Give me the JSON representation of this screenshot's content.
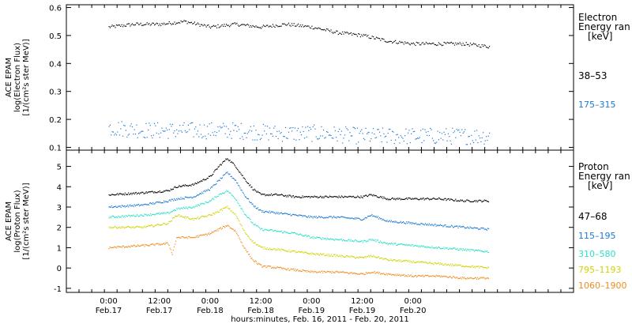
{
  "chart_data": [
    {
      "type": "scatter",
      "ylabel": [
        "ACE EPAM",
        "log(Electron Flux)",
        "[1/(cm²s ster MeV)]"
      ],
      "ylim": [
        0.09,
        0.61
      ],
      "yticks": [
        0.1,
        0.2,
        0.3,
        0.4,
        0.5,
        0.6
      ],
      "ytick_labels": [
        "0.1",
        "0.2",
        "0.3",
        "0.4",
        "0.5",
        "0.6"
      ],
      "legend_title": [
        "Electron",
        "Energy ran",
        "[keV]"
      ],
      "series": [
        {
          "name": "38–53",
          "color": "#000000",
          "x": [
            0,
            6,
            12,
            18,
            24,
            30,
            36,
            42,
            48,
            54,
            60,
            66,
            72,
            78,
            84,
            90
          ],
          "y": [
            0.53,
            0.54,
            0.54,
            0.55,
            0.53,
            0.54,
            0.53,
            0.54,
            0.53,
            0.51,
            0.5,
            0.48,
            0.47,
            0.47,
            0.47,
            0.46
          ]
        },
        {
          "name": "175–315",
          "color": "#1e78d2",
          "x": [
            0,
            10,
            20,
            30,
            40,
            50,
            60,
            70,
            80,
            90
          ],
          "y": [
            0.17,
            0.16,
            0.16,
            0.16,
            0.15,
            0.15,
            0.14,
            0.14,
            0.14,
            0.14
          ]
        }
      ]
    },
    {
      "type": "scatter",
      "ylabel": [
        "ACE EPAM",
        "log(Proton Flux)",
        "[1/(cm²s ster MeV)]"
      ],
      "ylim": [
        -1.2,
        5.8
      ],
      "yticks": [
        -1,
        0,
        1,
        2,
        3,
        4,
        5
      ],
      "ytick_labels": [
        "-1",
        "0",
        "1",
        "2",
        "3",
        "4",
        "5"
      ],
      "legend_title": [
        "Proton",
        "Energy ran",
        "[keV]"
      ],
      "series": [
        {
          "name": "47–68",
          "color": "#000000",
          "x": [
            0,
            8,
            14,
            16,
            20,
            24,
            26,
            28,
            30,
            32,
            34,
            36,
            40,
            44,
            48,
            54,
            60,
            62,
            66,
            72,
            78,
            84,
            90
          ],
          "y": [
            3.6,
            3.7,
            3.8,
            4.0,
            4.1,
            4.5,
            5.0,
            5.4,
            5.0,
            4.4,
            3.9,
            3.6,
            3.6,
            3.5,
            3.5,
            3.5,
            3.5,
            3.6,
            3.4,
            3.4,
            3.4,
            3.3,
            3.3
          ]
        },
        {
          "name": "115–195",
          "color": "#1e78d2",
          "x": [
            0,
            8,
            14,
            16,
            20,
            24,
            26,
            28,
            30,
            32,
            34,
            36,
            40,
            44,
            48,
            54,
            60,
            62,
            66,
            72,
            78,
            84,
            90
          ],
          "y": [
            3.0,
            3.1,
            3.3,
            3.4,
            3.5,
            3.9,
            4.3,
            4.7,
            4.3,
            3.6,
            3.1,
            2.8,
            2.7,
            2.6,
            2.5,
            2.5,
            2.4,
            2.6,
            2.3,
            2.2,
            2.1,
            2.0,
            1.9
          ]
        },
        {
          "name": "310–580",
          "color": "#28e0c8",
          "x": [
            0,
            8,
            14,
            16,
            20,
            24,
            26,
            28,
            30,
            32,
            34,
            36,
            40,
            44,
            48,
            54,
            60,
            62,
            66,
            72,
            78,
            84,
            90
          ],
          "y": [
            2.5,
            2.6,
            2.7,
            2.9,
            3.0,
            3.3,
            3.6,
            3.8,
            3.4,
            2.7,
            2.2,
            1.9,
            1.8,
            1.7,
            1.5,
            1.4,
            1.3,
            1.4,
            1.2,
            1.1,
            1.0,
            0.9,
            0.8
          ]
        },
        {
          "name": "795–1193",
          "color": "#d2d200",
          "x": [
            0,
            8,
            14,
            16,
            20,
            24,
            26,
            28,
            30,
            32,
            34,
            36,
            40,
            44,
            48,
            54,
            60,
            62,
            66,
            72,
            78,
            84,
            90
          ],
          "y": [
            2.0,
            2.0,
            2.2,
            2.6,
            2.4,
            2.6,
            2.8,
            3.0,
            2.6,
            1.8,
            1.3,
            1.0,
            0.9,
            0.8,
            0.7,
            0.6,
            0.5,
            0.6,
            0.4,
            0.3,
            0.2,
            0.1,
            0.0
          ]
        },
        {
          "name": "1060–1900",
          "color": "#f08c1e",
          "x": [
            0,
            8,
            14,
            15,
            16,
            20,
            24,
            26,
            28,
            30,
            32,
            34,
            36,
            40,
            44,
            48,
            54,
            60,
            62,
            66,
            72,
            78,
            84,
            90
          ],
          "y": [
            1.0,
            1.1,
            1.2,
            0.7,
            1.5,
            1.5,
            1.7,
            1.9,
            2.1,
            1.8,
            1.0,
            0.4,
            0.1,
            0.0,
            -0.1,
            -0.2,
            -0.2,
            -0.3,
            -0.2,
            -0.3,
            -0.4,
            -0.4,
            -0.5,
            -0.5
          ]
        }
      ]
    }
  ],
  "xaxis": {
    "range_hours": [
      -10,
      110
    ],
    "ticks_hours": [
      0,
      12,
      24,
      36,
      48,
      60,
      72,
      84,
      96
    ],
    "tick_labels_top": [
      "0:00",
      "12:00",
      "0:00",
      "12:00",
      "0:00",
      "12:00",
      "0:00"
    ],
    "tick_labels_bottom": [
      "Feb.17",
      "Feb.17",
      "Feb.18",
      "Feb.18",
      "Feb.19",
      "Feb.19",
      "Feb.20"
    ],
    "title": "hours:minutes, Feb. 16, 2011 - Feb. 20, 2011"
  }
}
